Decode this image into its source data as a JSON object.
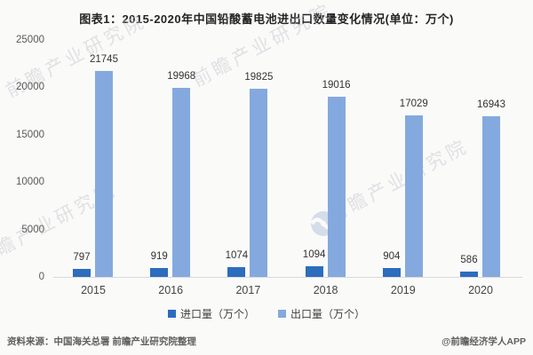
{
  "title": "图表1：2015-2020年中国铅酸蓄电池进出口数量变化情况(单位：万个)",
  "chart_data": {
    "type": "bar",
    "categories": [
      "2015",
      "2016",
      "2017",
      "2018",
      "2019",
      "2020"
    ],
    "series": [
      {
        "name": "进口量（万个）",
        "color": "#2c6dbe",
        "values": [
          797,
          919,
          1074,
          1094,
          904,
          586
        ]
      },
      {
        "name": "出口量（万个）",
        "color": "#84a9de",
        "values": [
          21745,
          19968,
          19825,
          19016,
          17029,
          16943
        ]
      }
    ],
    "title": "图表1：2015-2020年中国铅酸蓄电池进出口数量变化情况(单位：万个)",
    "xlabel": "",
    "ylabel": "",
    "ylim": [
      0,
      25000
    ],
    "yticks": [
      0,
      5000,
      10000,
      15000,
      20000,
      25000
    ],
    "grid": false,
    "legend_position": "bottom",
    "data_labels": true
  },
  "watermark": {
    "text": "前瞻产业研究院",
    "logo": "qianzhan-pinwheel-logo"
  },
  "footer": {
    "source": "资料来源：中国海关总署 前瞻产业研究院整理",
    "credit": "@前瞻经济学人APP"
  }
}
